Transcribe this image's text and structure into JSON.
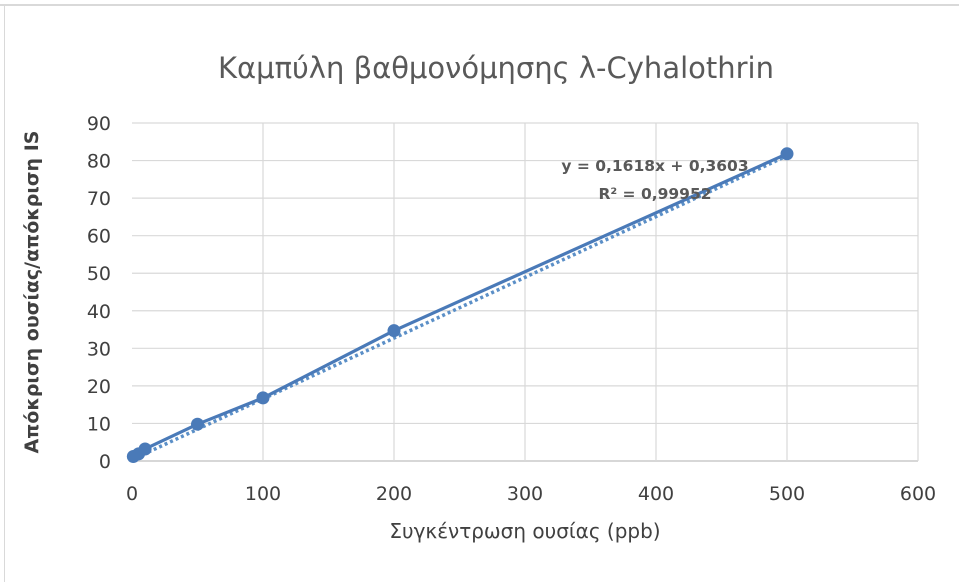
{
  "chart_data": {
    "type": "scatter",
    "title": "Καμπύλη βαθμονόμησης λ-Cyhalothrin",
    "xlabel": "Συγκέντρωση ουσίας (ppb)",
    "ylabel": "Απόκριση ουσίας/απόκριση IS",
    "xlim": [
      0,
      600
    ],
    "ylim": [
      0,
      90
    ],
    "x_ticks": [
      "0",
      "100",
      "200",
      "300",
      "400",
      "500",
      "600"
    ],
    "y_ticks": [
      "0",
      "10",
      "20",
      "30",
      "40",
      "50",
      "60",
      "70",
      "80",
      "90"
    ],
    "grid": true,
    "legend": "none",
    "series": [
      {
        "x": [
          1,
          5,
          10,
          50,
          100,
          200,
          500
        ],
        "y": [
          1.2,
          1.9,
          3.2,
          9.8,
          16.8,
          34.7,
          81.8
        ],
        "color": "#4a7ab8"
      }
    ],
    "connector_color": "#4a7ab8",
    "trendline": {
      "slope": 0.1618,
      "intercept": 0.3603,
      "x_range": [
        0,
        500
      ],
      "style": "dotted",
      "color": "#5b8fc7"
    },
    "annotations": {
      "equation": "y = 0,1618x + 0,3603",
      "r_squared": "R² = 0,99952"
    }
  }
}
